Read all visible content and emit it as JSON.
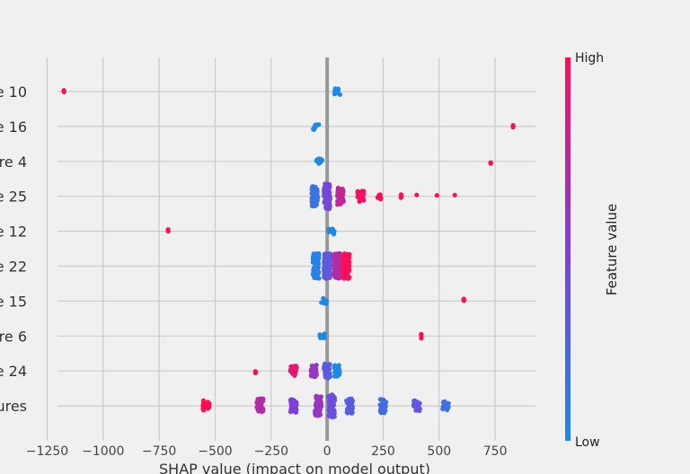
{
  "chart_data": {
    "type": "scatter",
    "subtype": "shap-beeswarm",
    "xlabel": "SHAP value (impact on model output)",
    "xlim": [
      -1300,
      930
    ],
    "xticks": [
      -1250,
      -1000,
      -750,
      -500,
      -250,
      0,
      250,
      500,
      750
    ],
    "xtick_labels": [
      "−1250",
      "−1000",
      "−750",
      "−500",
      "−250",
      "0",
      "250",
      "500",
      "750"
    ],
    "categories": [
      "e 10",
      "e 16",
      "re 4",
      "e 25",
      "e 12",
      "e 22",
      "e 15",
      "re 6",
      "e 24",
      "ures"
    ],
    "grid": true,
    "colorbar": {
      "label": "Feature value",
      "high_label": "High",
      "low_label": "Low",
      "low_color": "#1e88e5",
      "high_color": "#ff0d57"
    },
    "rows": [
      {
        "category": "e 10",
        "points": [
          {
            "x": -1175,
            "c": 1.0,
            "n": 3
          },
          {
            "x": 45,
            "c": 0.0,
            "n": 10
          }
        ]
      },
      {
        "category": "e 16",
        "points": [
          {
            "x": -50,
            "c": 0.0,
            "n": 10
          },
          {
            "x": 830,
            "c": 1.0,
            "n": 3
          }
        ]
      },
      {
        "category": "re 4",
        "points": [
          {
            "x": -35,
            "c": 0.0,
            "n": 10
          },
          {
            "x": 730,
            "c": 1.0,
            "n": 3
          }
        ]
      },
      {
        "category": "e 25",
        "points": [
          {
            "x": -55,
            "c": 0.15,
            "n": 60
          },
          {
            "x": 0,
            "c": 0.45,
            "n": 80
          },
          {
            "x": 60,
            "c": 0.75,
            "n": 50
          },
          {
            "x": 150,
            "c": 0.95,
            "n": 25
          },
          {
            "x": 230,
            "c": 1.0,
            "n": 8
          },
          {
            "x": 330,
            "c": 1.0,
            "n": 3
          },
          {
            "x": 400,
            "c": 1.0,
            "n": 1
          },
          {
            "x": 490,
            "c": 1.0,
            "n": 1
          },
          {
            "x": 570,
            "c": 1.0,
            "n": 1
          }
        ]
      },
      {
        "category": "e 12",
        "points": [
          {
            "x": -710,
            "c": 1.0,
            "n": 3
          },
          {
            "x": 20,
            "c": 0.0,
            "n": 10
          }
        ]
      },
      {
        "category": "e 22",
        "points": [
          {
            "x": -50,
            "c": 0.05,
            "n": 90
          },
          {
            "x": 0,
            "c": 0.35,
            "n": 120
          },
          {
            "x": 45,
            "c": 0.7,
            "n": 120
          },
          {
            "x": 85,
            "c": 1.0,
            "n": 90
          }
        ]
      },
      {
        "category": "e 15",
        "points": [
          {
            "x": -15,
            "c": 0.0,
            "n": 10
          },
          {
            "x": 610,
            "c": 1.0,
            "n": 3
          }
        ]
      },
      {
        "category": "re 6",
        "points": [
          {
            "x": -20,
            "c": 0.0,
            "n": 10
          },
          {
            "x": 420,
            "c": 1.0,
            "n": 3
          }
        ]
      },
      {
        "category": "e 24",
        "points": [
          {
            "x": -320,
            "c": 1.0,
            "n": 3
          },
          {
            "x": -150,
            "c": 0.9,
            "n": 25
          },
          {
            "x": -60,
            "c": 0.6,
            "n": 30
          },
          {
            "x": 0,
            "c": 0.3,
            "n": 40
          },
          {
            "x": 45,
            "c": 0.0,
            "n": 30
          }
        ]
      },
      {
        "category": "ures",
        "points": [
          {
            "x": -540,
            "c": 1.0,
            "n": 25
          },
          {
            "x": -300,
            "c": 0.7,
            "n": 40
          },
          {
            "x": -150,
            "c": 0.5,
            "n": 35
          },
          {
            "x": -40,
            "c": 0.6,
            "n": 60
          },
          {
            "x": 20,
            "c": 0.4,
            "n": 70
          },
          {
            "x": 100,
            "c": 0.3,
            "n": 45
          },
          {
            "x": 250,
            "c": 0.2,
            "n": 40
          },
          {
            "x": 400,
            "c": 0.35,
            "n": 25
          },
          {
            "x": 530,
            "c": 0.15,
            "n": 20
          }
        ]
      }
    ]
  }
}
